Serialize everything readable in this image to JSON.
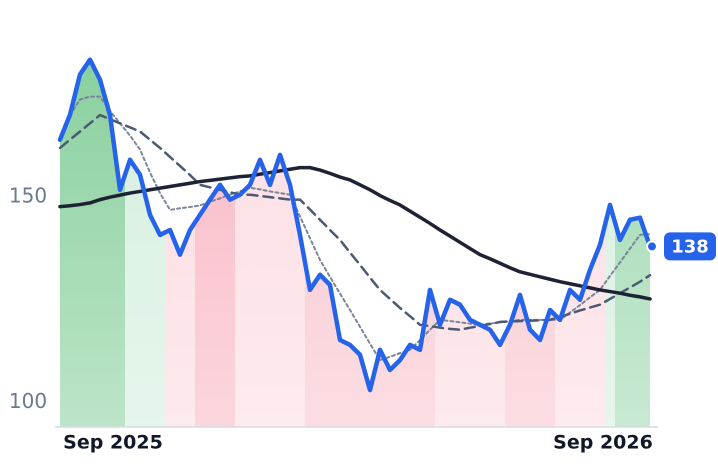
{
  "chart_data": {
    "type": "line",
    "categories": [
      null,
      null,
      null,
      null,
      null,
      "Sep 2025",
      null,
      null,
      null,
      null,
      null,
      null,
      null,
      null,
      null,
      null,
      null,
      null,
      null,
      null,
      null,
      null,
      null,
      null,
      null,
      null,
      null,
      null,
      null,
      null,
      null,
      null,
      null,
      null,
      null,
      null,
      null,
      null,
      null,
      null,
      null,
      null,
      null,
      null,
      null,
      null,
      null,
      null,
      null,
      null,
      null,
      null,
      null,
      null,
      "Sep 2026",
      null,
      null,
      null,
      null,
      null
    ],
    "ylim": [
      94,
      190
    ],
    "yticks": [
      100,
      150
    ],
    "series": [
      {
        "color": "#2563eb",
        "width": 4.5,
        "dash": "none",
        "last_badge": true,
        "values": [
          164,
          170.1,
          179.9,
          183.5,
          178.6,
          170,
          151.8,
          159.1,
          155.5,
          145.7,
          140.8,
          142,
          136,
          142,
          145.7,
          149.4,
          153,
          149.4,
          150.6,
          153,
          159.1,
          153,
          160.3,
          153,
          140.8,
          127.4,
          131.1,
          128.6,
          115.2,
          114,
          111.6,
          103,
          112.8,
          107.9,
          110.3,
          114,
          112.8,
          127.4,
          118.9,
          125,
          123.8,
          120.1,
          118.9,
          117.7,
          114,
          118.9,
          126.2,
          117.7,
          115.2,
          122.5,
          120.1,
          127.4,
          125,
          132.3,
          138.4,
          148.1,
          139.6,
          144.5,
          145,
          138
        ]
      },
      {
        "color": "#1e2235",
        "width": 3.5,
        "dash": "none",
        "values": [
          147.7,
          147.9,
          148.2,
          148.6,
          149.4,
          150,
          150.5,
          151,
          151.4,
          151.8,
          152.2,
          152.6,
          153,
          153.4,
          153.8,
          154.1,
          154.4,
          154.7,
          155,
          155.2,
          155.6,
          156,
          156.4,
          156.8,
          157.2,
          157.2,
          156.6,
          155.8,
          154.9,
          154.2,
          153,
          151.8,
          150.4,
          149.2,
          148.1,
          146.6,
          145.1,
          143.6,
          142,
          140.5,
          139,
          137.5,
          136,
          135,
          133.9,
          132.8,
          131.8,
          131.2,
          130.6,
          130,
          129.4,
          128.9,
          128.4,
          127.9,
          127.4,
          127,
          126.6,
          126.1,
          125.7,
          125.2
        ]
      },
      {
        "color": "#4b5a72",
        "width": 2.5,
        "dash": "10 6",
        "values": [
          162,
          164,
          166,
          168,
          170,
          169,
          168,
          167,
          166,
          164,
          162,
          159.8,
          157.6,
          155.4,
          153,
          152.4,
          151.8,
          151.2,
          150.6,
          150.6,
          150.3,
          150,
          149.7,
          149.4,
          149.4,
          147,
          144.5,
          142,
          139.6,
          136.5,
          133.5,
          130.4,
          127.4,
          125.2,
          123,
          121,
          118.9,
          118.6,
          118.2,
          117.9,
          117.7,
          118.2,
          118.6,
          119.1,
          119.6,
          119.7,
          119.8,
          119.9,
          120,
          120.1,
          120.8,
          121.6,
          122.4,
          123.1,
          123.8,
          125.2,
          126.6,
          128,
          129.4,
          131
        ]
      },
      {
        "color": "#7a869a",
        "width": 2,
        "dash": "3 3",
        "values": [
          null,
          170,
          173.8,
          174.5,
          174.5,
          171,
          168,
          165,
          161.6,
          156,
          151,
          146.9,
          147.3,
          147.6,
          148,
          148.9,
          149.7,
          150.6,
          151.4,
          152.3,
          151.9,
          151.4,
          151,
          150.6,
          145.3,
          140,
          134.7,
          130.6,
          126.5,
          122.5,
          118.4,
          114.3,
          110.3,
          111.1,
          112,
          112.8,
          115.2,
          117.7,
          120.1,
          119.8,
          119.5,
          119.2,
          118.9,
          119.2,
          119.5,
          119.8,
          120.1,
          120.1,
          120.1,
          120.1,
          120.1,
          121.9,
          123.7,
          125.6,
          127.4,
          130.8,
          134.1,
          137.5,
          140.8,
          141
        ]
      }
    ],
    "regions": [
      {
        "from": 0,
        "to": 6,
        "color": "#86cf9c"
      },
      {
        "from": 7,
        "to": 10,
        "color": "#d3eedd"
      },
      {
        "from": 11,
        "to": 13,
        "color": "#fcd9df"
      },
      {
        "from": 14,
        "to": 17,
        "color": "#f9b5c2"
      },
      {
        "from": 18,
        "to": 24,
        "color": "#fcdbe1"
      },
      {
        "from": 25,
        "to": 37,
        "color": "#f8c2cc"
      },
      {
        "from": 38,
        "to": 44,
        "color": "#fcd9df"
      },
      {
        "from": 45,
        "to": 49,
        "color": "#f8c2cc"
      },
      {
        "from": 50,
        "to": 54,
        "color": "#fcdbe1"
      },
      {
        "from": 55,
        "to": 55,
        "color": "#d3eedd"
      },
      {
        "from": 56,
        "to": 59,
        "color": "#9ad8ad"
      }
    ]
  }
}
